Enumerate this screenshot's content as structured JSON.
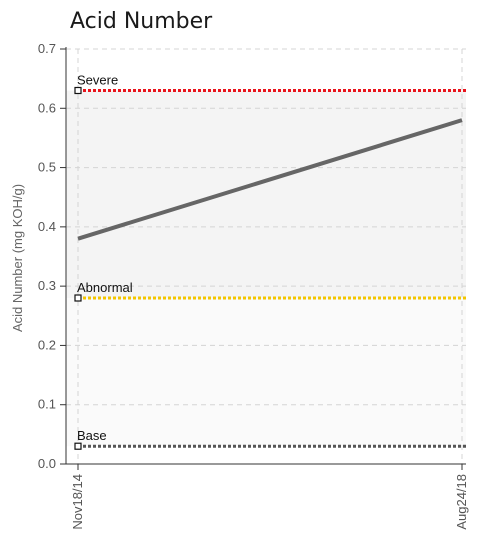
{
  "chart_data": {
    "type": "line",
    "title": "Acid Number",
    "ylabel": "Acid Number (mg KOH/g)",
    "xlabel": "",
    "ylim": [
      0,
      0.7
    ],
    "yticks": [
      "0.0",
      "0.1",
      "0.2",
      "0.3",
      "0.4",
      "0.5",
      "0.6",
      "0.7"
    ],
    "ytick_values": [
      0,
      0.1,
      0.2,
      0.3,
      0.4,
      0.5,
      0.6,
      0.7
    ],
    "categories": [
      "Nov18/14",
      "Aug24/18"
    ],
    "series": [
      {
        "values": [
          0.38,
          0.58
        ],
        "color": "#666666"
      }
    ],
    "thresholds": [
      {
        "label": "Severe",
        "value": 0.63,
        "color": "#e8141c"
      },
      {
        "label": "Abnormal",
        "value": 0.28,
        "color": "#f2c600"
      },
      {
        "label": "Base",
        "value": 0.03,
        "color": "#555555"
      }
    ],
    "bands": [
      {
        "from": 0.03,
        "to": 0.28,
        "color": "#fafafa"
      },
      {
        "from": 0.28,
        "to": 0.63,
        "color": "#f4f4f4"
      }
    ],
    "grid": true
  }
}
